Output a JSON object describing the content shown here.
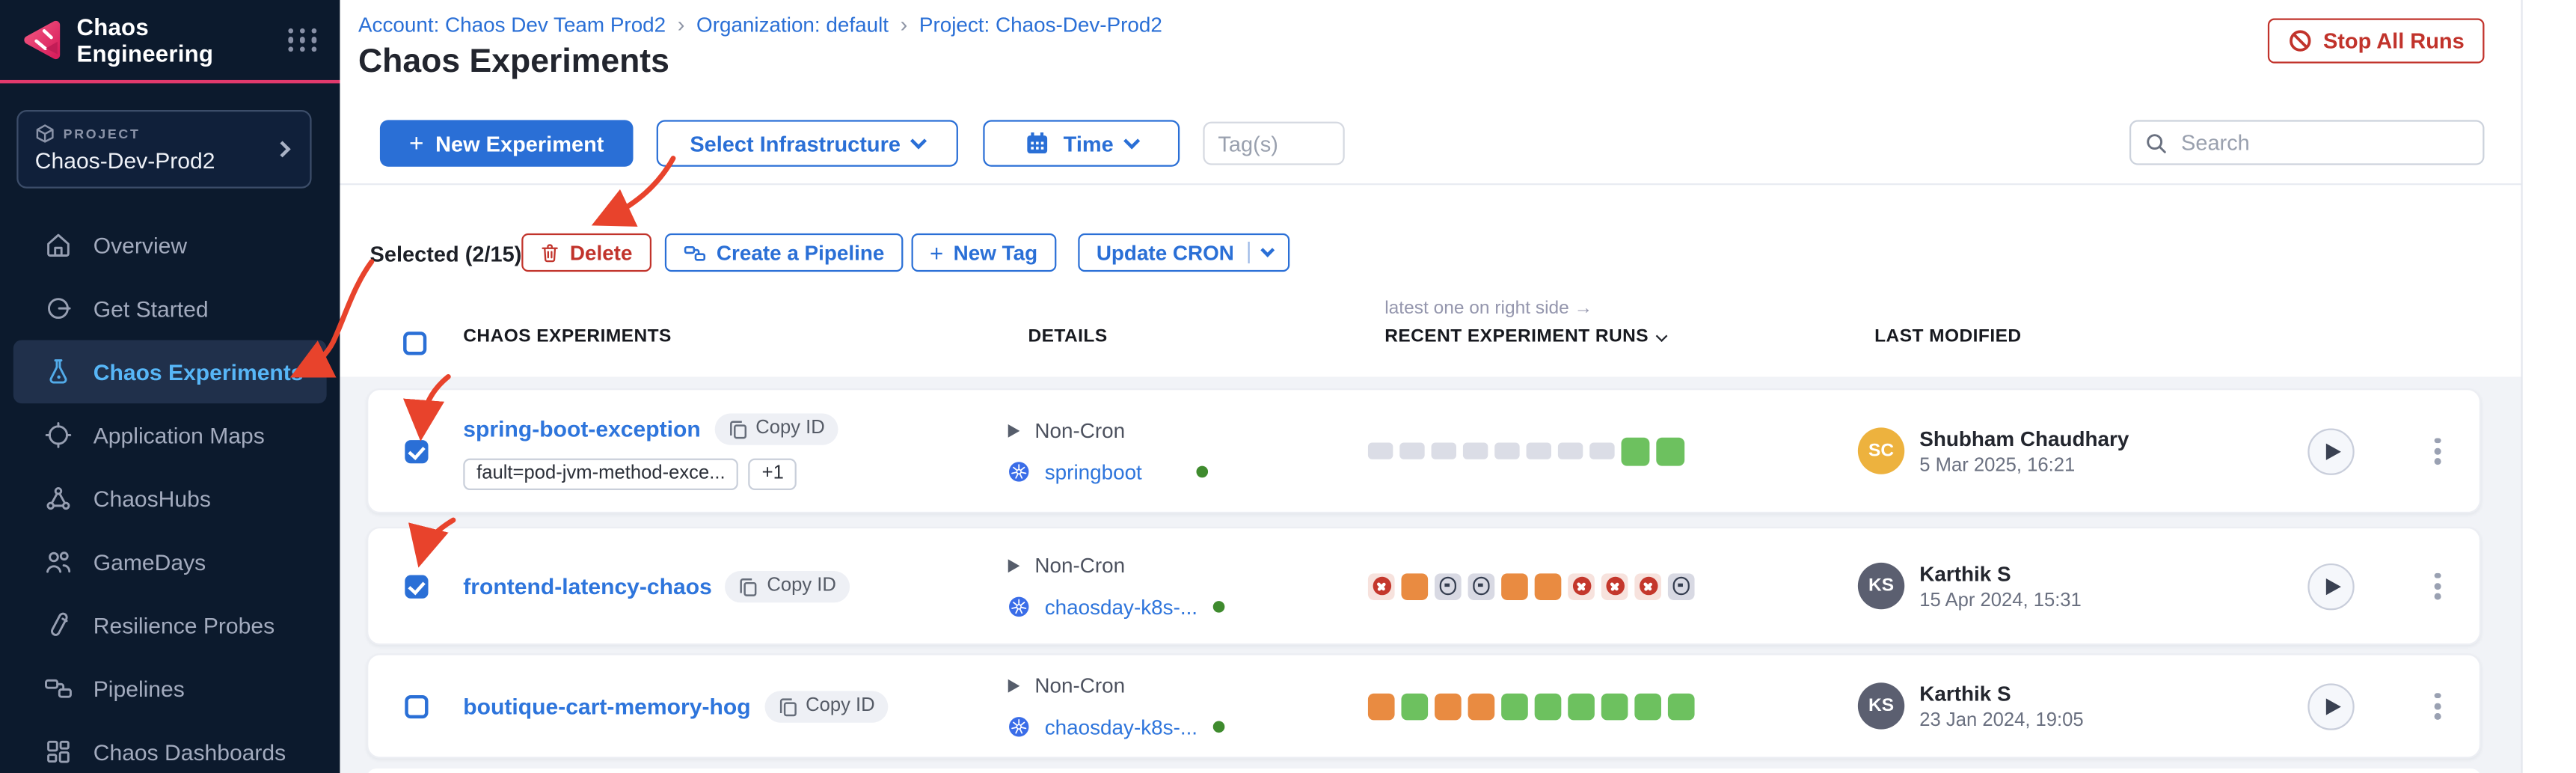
{
  "sidebar": {
    "product": "Chaos Engineering",
    "logo_icon": "chaos-engineering-logo",
    "module_grid_icon": "module-grid-icon",
    "project_label": "PROJECT",
    "project_name": "Chaos-Dev-Prod2",
    "items": [
      {
        "label": "Overview",
        "icon": "home-icon",
        "active": false
      },
      {
        "label": "Get Started",
        "icon": "get-started-icon",
        "active": false
      },
      {
        "label": "Chaos Experiments",
        "icon": "flask-icon",
        "active": true
      },
      {
        "label": "Application Maps",
        "icon": "application-maps-icon",
        "active": false
      },
      {
        "label": "ChaosHubs",
        "icon": "network-icon",
        "active": false
      },
      {
        "label": "GameDays",
        "icon": "people-icon",
        "active": false
      },
      {
        "label": "Resilience Probes",
        "icon": "test-tube-icon",
        "active": false
      },
      {
        "label": "Pipelines",
        "icon": "pipeline-icon",
        "active": false
      },
      {
        "label": "Chaos Dashboards",
        "icon": "dashboard-icon",
        "active": false
      }
    ]
  },
  "breadcrumb": {
    "items": [
      "Account: Chaos Dev Team Prod2",
      "Organization: default",
      "Project: Chaos-Dev-Prod2"
    ]
  },
  "header": {
    "title": "Chaos Experiments",
    "stop_all_runs": "Stop All Runs"
  },
  "toolbar": {
    "new_experiment": "New Experiment",
    "select_infrastructure": "Select Infrastructure",
    "time": "Time",
    "tags_placeholder": "Tag(s)",
    "search_placeholder": "Search"
  },
  "selection": {
    "label": "Selected (2/15)",
    "delete": "Delete",
    "create_pipeline": "Create a Pipeline",
    "new_tag": "New Tag",
    "update_cron": "Update CRON"
  },
  "table": {
    "note": "latest one on right side →",
    "copy_id": "Copy ID",
    "headers": {
      "experiments": "CHAOS EXPERIMENTS",
      "details": "DETAILS",
      "runs": "RECENT EXPERIMENT RUNS",
      "last_modified": "LAST MODIFIED"
    }
  },
  "rows": [
    {
      "checked": true,
      "name": "spring-boot-exception",
      "tags": [
        "fault=pod-jvm-method-exce...",
        "+1"
      ],
      "cron": "Non-Cron",
      "infra": "springboot",
      "runs": [
        "none",
        "none",
        "none",
        "none",
        "none",
        "none",
        "none",
        "none",
        "success",
        "success"
      ],
      "user": {
        "initials": "SC",
        "name": "Shubham Chaudhary",
        "date": "5 Mar 2025, 16:21",
        "color": "#edb23e"
      }
    },
    {
      "checked": true,
      "name": "frontend-latency-chaos",
      "tags": [],
      "cron": "Non-Cron",
      "infra": "chaosday-k8s-...",
      "runs": [
        "failed",
        "warning",
        "stopped",
        "stopped",
        "warning",
        "warning",
        "failed",
        "failed",
        "failed",
        "stopped"
      ],
      "user": {
        "initials": "KS",
        "name": "Karthik S",
        "date": "15 Apr 2024, 15:31",
        "color": "#5b5f70"
      }
    },
    {
      "checked": false,
      "name": "boutique-cart-memory-hog",
      "tags": [],
      "cron": "Non-Cron",
      "infra": "chaosday-k8s-...",
      "runs": [
        "warning",
        "success",
        "warning",
        "warning",
        "success",
        "success",
        "success",
        "success",
        "success",
        "success"
      ],
      "user": {
        "initials": "KS",
        "name": "Karthik S",
        "date": "23 Jan 2024, 19:05",
        "color": "#5b5f70"
      }
    }
  ],
  "colors": {
    "accent_blue": "#2a6fd6",
    "danger_red": "#c1332b",
    "annotation_red": "#e8432c",
    "success_green": "#6dc15f",
    "warning_orange": "#e98b41",
    "brand_pink": "#e23a6d",
    "sidebar_bg": "#0c1a2d"
  }
}
